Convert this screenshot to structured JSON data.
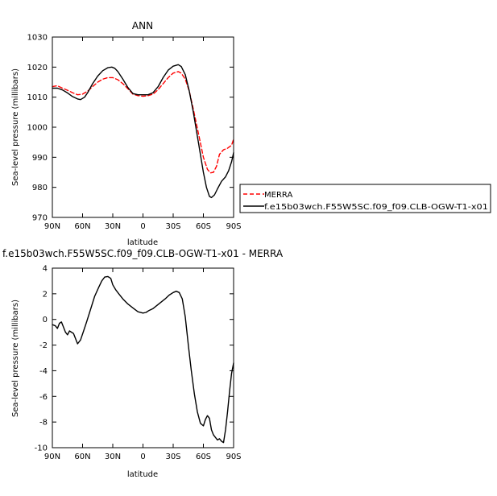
{
  "chart_data": [
    {
      "type": "line",
      "title": "ANN",
      "xlabel": "latitude",
      "ylabel": "Sea-level pressure (millibars)",
      "x_ticks": [
        {
          "v": 90,
          "label": "90N"
        },
        {
          "v": 60,
          "label": "60N"
        },
        {
          "v": 30,
          "label": "30N"
        },
        {
          "v": 0,
          "label": "0"
        },
        {
          "v": -30,
          "label": "30S"
        },
        {
          "v": -60,
          "label": "60S"
        },
        {
          "v": -90,
          "label": "90S"
        }
      ],
      "y_ticks": [
        970,
        980,
        990,
        1000,
        1010,
        1020,
        1030
      ],
      "xlim": [
        90,
        -90
      ],
      "ylim": [
        970,
        1030
      ],
      "grid": false,
      "legend_position": "right, outside plot",
      "series": [
        {
          "name": "MERRA",
          "color": "#ff0000",
          "dash": "dashed",
          "points": [
            [
              90,
              1013.5
            ],
            [
              85,
              1013.8
            ],
            [
              80,
              1013
            ],
            [
              75,
              1012.3
            ],
            [
              70,
              1011.5
            ],
            [
              65,
              1010.8
            ],
            [
              60,
              1011
            ],
            [
              55,
              1012
            ],
            [
              50,
              1013.5
            ],
            [
              45,
              1015
            ],
            [
              40,
              1016
            ],
            [
              35,
              1016.5
            ],
            [
              30,
              1016.5
            ],
            [
              25,
              1015.8
            ],
            [
              20,
              1014.5
            ],
            [
              15,
              1012.8
            ],
            [
              10,
              1011
            ],
            [
              5,
              1010.5
            ],
            [
              0,
              1010.3
            ],
            [
              -5,
              1010.5
            ],
            [
              -10,
              1011
            ],
            [
              -15,
              1012.5
            ],
            [
              -20,
              1014.5
            ],
            [
              -25,
              1016.5
            ],
            [
              -30,
              1018
            ],
            [
              -35,
              1018.5
            ],
            [
              -38,
              1018
            ],
            [
              -42,
              1016
            ],
            [
              -46,
              1012
            ],
            [
              -50,
              1006
            ],
            [
              -55,
              998
            ],
            [
              -60,
              990
            ],
            [
              -64,
              986
            ],
            [
              -67,
              984.8
            ],
            [
              -70,
              985
            ],
            [
              -73,
              987
            ],
            [
              -76,
              991
            ],
            [
              -80,
              992.5
            ],
            [
              -84,
              993
            ],
            [
              -88,
              994
            ],
            [
              -90,
              996
            ]
          ]
        },
        {
          "name": "f.e15b03wch.F55W5SC.f09_f09.CLB-OGW-T1-x01",
          "color": "#000000",
          "dash": "solid",
          "points": [
            [
              90,
              1013
            ],
            [
              85,
              1013
            ],
            [
              80,
              1012.4
            ],
            [
              75,
              1011.4
            ],
            [
              70,
              1010.2
            ],
            [
              65,
              1009.4
            ],
            [
              62,
              1009.2
            ],
            [
              58,
              1010
            ],
            [
              55,
              1011.5
            ],
            [
              50,
              1014.5
            ],
            [
              45,
              1017
            ],
            [
              40,
              1018.8
            ],
            [
              35,
              1019.8
            ],
            [
              31,
              1020
            ],
            [
              28,
              1019.6
            ],
            [
              25,
              1018.5
            ],
            [
              20,
              1016
            ],
            [
              15,
              1013.2
            ],
            [
              10,
              1011.2
            ],
            [
              5,
              1010.8
            ],
            [
              0,
              1010.8
            ],
            [
              -5,
              1010.8
            ],
            [
              -10,
              1011.5
            ],
            [
              -15,
              1013.5
            ],
            [
              -20,
              1016.5
            ],
            [
              -25,
              1019
            ],
            [
              -30,
              1020.3
            ],
            [
              -35,
              1020.8
            ],
            [
              -38,
              1020.2
            ],
            [
              -42,
              1017.5
            ],
            [
              -46,
              1012
            ],
            [
              -50,
              1005
            ],
            [
              -55,
              995
            ],
            [
              -60,
              985
            ],
            [
              -63,
              980
            ],
            [
              -66,
              977
            ],
            [
              -68,
              976.6
            ],
            [
              -71,
              977.5
            ],
            [
              -74,
              979.5
            ],
            [
              -78,
              982
            ],
            [
              -82,
              983.5
            ],
            [
              -85,
              985.5
            ],
            [
              -88,
              988.5
            ],
            [
              -90,
              991.5
            ]
          ]
        }
      ]
    },
    {
      "type": "line",
      "title": "f.e15b03wch.F55W5SC.f09_f09.CLB-OGW-T1-x01 - MERRA",
      "xlabel": "latitude",
      "ylabel": "Sea-level pressure (millibars)",
      "x_ticks": [
        {
          "v": 90,
          "label": "90N"
        },
        {
          "v": 60,
          "label": "60N"
        },
        {
          "v": 30,
          "label": "30N"
        },
        {
          "v": 0,
          "label": "0"
        },
        {
          "v": -30,
          "label": "30S"
        },
        {
          "v": -60,
          "label": "60S"
        },
        {
          "v": -90,
          "label": "90S"
        }
      ],
      "y_ticks": [
        -10,
        -8,
        -6,
        -4,
        -2,
        0,
        2,
        4
      ],
      "xlim": [
        90,
        -90
      ],
      "ylim": [
        -10,
        4
      ],
      "grid": false,
      "series": [
        {
          "color": "#000000",
          "dash": "solid",
          "points": [
            [
              90,
              -0.4
            ],
            [
              87,
              -0.5
            ],
            [
              85,
              -0.7
            ],
            [
              83,
              -0.3
            ],
            [
              81,
              -0.2
            ],
            [
              79,
              -0.6
            ],
            [
              77,
              -1.0
            ],
            [
              75,
              -1.2
            ],
            [
              73,
              -0.9
            ],
            [
              71,
              -1.0
            ],
            [
              69,
              -1.1
            ],
            [
              67,
              -1.5
            ],
            [
              65,
              -1.9
            ],
            [
              62,
              -1.6
            ],
            [
              59,
              -0.9
            ],
            [
              56,
              -0.2
            ],
            [
              52,
              0.8
            ],
            [
              48,
              1.8
            ],
            [
              44,
              2.5
            ],
            [
              41,
              3.0
            ],
            [
              38,
              3.3
            ],
            [
              35,
              3.35
            ],
            [
              32,
              3.2
            ],
            [
              30,
              2.7
            ],
            [
              27,
              2.3
            ],
            [
              24,
              2.0
            ],
            [
              20,
              1.6
            ],
            [
              15,
              1.2
            ],
            [
              10,
              0.9
            ],
            [
              5,
              0.6
            ],
            [
              0,
              0.5
            ],
            [
              -3,
              0.55
            ],
            [
              -6,
              0.7
            ],
            [
              -10,
              0.85
            ],
            [
              -14,
              1.1
            ],
            [
              -18,
              1.35
            ],
            [
              -22,
              1.6
            ],
            [
              -26,
              1.9
            ],
            [
              -30,
              2.1
            ],
            [
              -33,
              2.2
            ],
            [
              -36,
              2.1
            ],
            [
              -39,
              1.6
            ],
            [
              -42,
              0.2
            ],
            [
              -45,
              -2.0
            ],
            [
              -48,
              -4.0
            ],
            [
              -51,
              -5.8
            ],
            [
              -54,
              -7.2
            ],
            [
              -57,
              -8.1
            ],
            [
              -60,
              -8.3
            ],
            [
              -62,
              -7.8
            ],
            [
              -64,
              -7.5
            ],
            [
              -66,
              -7.7
            ],
            [
              -68,
              -8.6
            ],
            [
              -70,
              -9.0
            ],
            [
              -72,
              -9.2
            ],
            [
              -74,
              -9.4
            ],
            [
              -76,
              -9.3
            ],
            [
              -78,
              -9.5
            ],
            [
              -80,
              -9.6
            ],
            [
              -82,
              -8.6
            ],
            [
              -84,
              -7.2
            ],
            [
              -86,
              -5.6
            ],
            [
              -88,
              -4.2
            ],
            [
              -90,
              -3.4
            ]
          ]
        }
      ]
    }
  ]
}
